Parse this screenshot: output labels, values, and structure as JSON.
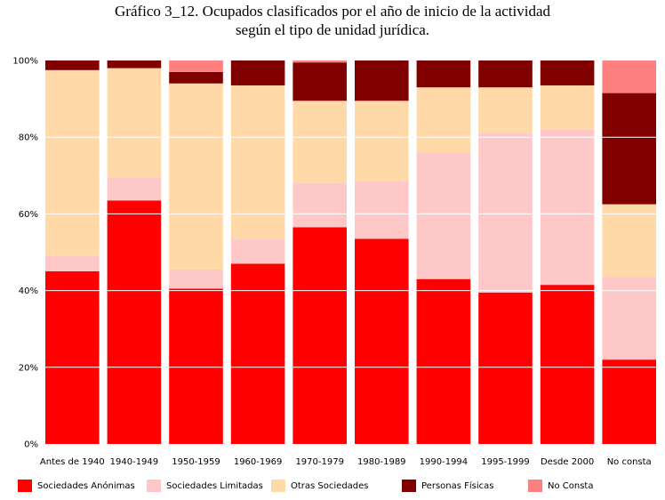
{
  "chart_data": {
    "type": "bar",
    "stacked": true,
    "title_lines": [
      "Gráfico 3_12. Ocupados clasificados por el año de inicio de la actividad",
      "según el tipo de unidad jurídica."
    ],
    "categories": [
      "Antes de 1940",
      "1940-1949",
      "1950-1959",
      "1960-1969",
      "1970-1979",
      "1980-1989",
      "1990-1994",
      "1995-1999",
      "Desde 2000",
      "No consta"
    ],
    "y_ticks": [
      "0%",
      "20%",
      "40%",
      "60%",
      "80%",
      "100%"
    ],
    "ylim": [
      0,
      100
    ],
    "grid": true,
    "legend_position": "bottom",
    "series": [
      {
        "name": "Sociedades Anónimas",
        "color": "#ff0000",
        "values": [
          45,
          63.5,
          40.5,
          47,
          56.5,
          53.5,
          43,
          39.5,
          41.5,
          22
        ]
      },
      {
        "name": "Sociedades Limitadas",
        "color": "#ffc8c8",
        "values": [
          4,
          6,
          5,
          6.5,
          11.5,
          15,
          33,
          41.5,
          40.5,
          21.5
        ]
      },
      {
        "name": "Otras Sociedades",
        "color": "#ffd9a8",
        "values": [
          48.5,
          28.5,
          48.5,
          40,
          21.5,
          21,
          17,
          12,
          11.5,
          19
        ]
      },
      {
        "name": "Personas Físicas",
        "color": "#800000",
        "values": [
          2.5,
          2,
          3,
          6.5,
          10,
          10.5,
          7,
          7,
          6.5,
          29
        ]
      },
      {
        "name": "No Consta",
        "color": "#ff8080",
        "values": [
          0,
          0,
          3,
          0,
          0.5,
          0,
          0,
          0,
          0,
          8.5
        ]
      }
    ]
  }
}
